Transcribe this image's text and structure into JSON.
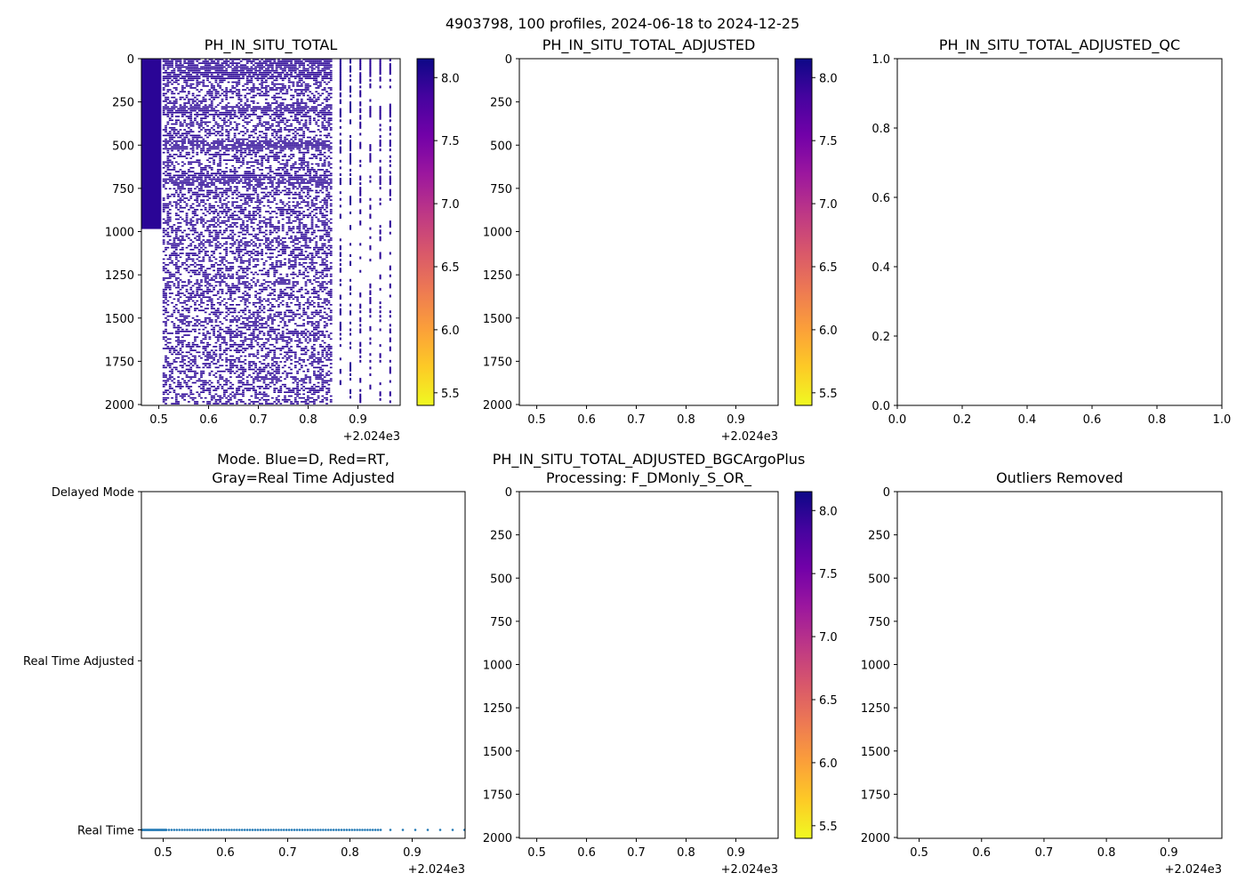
{
  "figure": {
    "suptitle": "4903798, 100 profiles, 2024-06-18 to 2024-12-25"
  },
  "chart_data": [
    {
      "id": "p1",
      "type": "heatmap",
      "title": "PH_IN_SITU_TOTAL",
      "xlim": [
        0.465,
        0.985
      ],
      "ylim": [
        2005,
        0
      ],
      "xticks": [
        0.5,
        0.6,
        0.7,
        0.8,
        0.9
      ],
      "xtick_labels": [
        "0.5",
        "0.6",
        "0.7",
        "0.8",
        "0.9"
      ],
      "x_offset_label": "+2.024e3",
      "yticks": [
        0,
        250,
        500,
        750,
        1000,
        1250,
        1500,
        1750,
        2000
      ],
      "ytick_labels": [
        "0",
        "250",
        "500",
        "750",
        "1000",
        "1250",
        "1500",
        "1750",
        "2000"
      ],
      "colorbar": {
        "cmap": "plasma_r",
        "range": [
          5.4,
          8.15
        ],
        "ticks": [
          5.5,
          6.0,
          6.5,
          7.0,
          7.5,
          8.0
        ],
        "tick_labels": [
          "5.5",
          "6.0",
          "6.5",
          "7.0",
          "7.5",
          "8.0"
        ]
      },
      "data_summary": {
        "value_approx": 8.0,
        "dense_band": {
          "x": [
            0.465,
            0.505
          ],
          "depth": [
            0,
            985
          ]
        },
        "profile_columns": {
          "x_start": 0.51,
          "x_end": 0.85,
          "step": 0.0042,
          "depth": [
            0,
            2000
          ]
        },
        "sparse_profiles_x": [
          0.865,
          0.885,
          0.905,
          0.925,
          0.945,
          0.965
        ],
        "dense_layers_depth": [
          [
            0,
            120
          ],
          [
            265,
            325
          ],
          [
            465,
            525
          ],
          [
            665,
            725
          ]
        ]
      }
    },
    {
      "id": "p2",
      "type": "heatmap",
      "title": "PH_IN_SITU_TOTAL_ADJUSTED",
      "xlim": [
        0.465,
        0.985
      ],
      "ylim": [
        2005,
        0
      ],
      "xticks": [
        0.5,
        0.6,
        0.7,
        0.8,
        0.9
      ],
      "xtick_labels": [
        "0.5",
        "0.6",
        "0.7",
        "0.8",
        "0.9"
      ],
      "x_offset_label": "+2.024e3",
      "yticks": [
        0,
        250,
        500,
        750,
        1000,
        1250,
        1500,
        1750,
        2000
      ],
      "ytick_labels": [
        "0",
        "250",
        "500",
        "750",
        "1000",
        "1250",
        "1500",
        "1750",
        "2000"
      ],
      "colorbar": {
        "cmap": "plasma_r",
        "range": [
          5.4,
          8.15
        ],
        "ticks": [
          5.5,
          6.0,
          6.5,
          7.0,
          7.5,
          8.0
        ],
        "tick_labels": [
          "5.5",
          "6.0",
          "6.5",
          "7.0",
          "7.5",
          "8.0"
        ]
      },
      "values": []
    },
    {
      "id": "p3",
      "type": "scatter",
      "title": "PH_IN_SITU_TOTAL_ADJUSTED_QC",
      "xlim": [
        0,
        1
      ],
      "ylim": [
        0,
        1
      ],
      "xticks": [
        0,
        0.2,
        0.4,
        0.6,
        0.8,
        1.0
      ],
      "xtick_labels": [
        "0.0",
        "0.2",
        "0.4",
        "0.6",
        "0.8",
        "1.0"
      ],
      "yticks": [
        0,
        0.2,
        0.4,
        0.6,
        0.8,
        1.0
      ],
      "ytick_labels": [
        "0.0",
        "0.2",
        "0.4",
        "0.6",
        "0.8",
        "1.0"
      ],
      "values": []
    },
    {
      "id": "p4",
      "type": "scatter",
      "title": "Mode. Blue=D, Red=RT,",
      "title_line2": "Gray=Real Time Adjusted",
      "xlim": [
        0.465,
        0.985
      ],
      "ylim": [
        -0.05,
        2.0
      ],
      "xticks": [
        0.5,
        0.6,
        0.7,
        0.8,
        0.9
      ],
      "xtick_labels": [
        "0.5",
        "0.6",
        "0.7",
        "0.8",
        "0.9"
      ],
      "x_offset_label": "+2.024e3",
      "yticks": [
        2,
        1,
        0
      ],
      "ytick_labels": [
        "Delayed Mode",
        "Real Time Adjusted",
        "Real Time"
      ],
      "series": [
        {
          "name": "Real Time",
          "color": "#1f77b4",
          "x_dense_range": [
            0.465,
            0.505,
            0.0012
          ],
          "x_regular_range": [
            0.505,
            0.85,
            0.0042
          ],
          "x_sparse": [
            0.865,
            0.885,
            0.905,
            0.925,
            0.945,
            0.965,
            0.984
          ],
          "y": 0
        }
      ]
    },
    {
      "id": "p5",
      "type": "heatmap",
      "title": "PH_IN_SITU_TOTAL_ADJUSTED_BGCArgoPlus",
      "title_line2": "Processing: F_DMonly_S_OR_",
      "xlim": [
        0.465,
        0.985
      ],
      "ylim": [
        2005,
        0
      ],
      "xticks": [
        0.5,
        0.6,
        0.7,
        0.8,
        0.9
      ],
      "xtick_labels": [
        "0.5",
        "0.6",
        "0.7",
        "0.8",
        "0.9"
      ],
      "x_offset_label": "+2.024e3",
      "yticks": [
        0,
        250,
        500,
        750,
        1000,
        1250,
        1500,
        1750,
        2000
      ],
      "ytick_labels": [
        "0",
        "250",
        "500",
        "750",
        "1000",
        "1250",
        "1500",
        "1750",
        "2000"
      ],
      "colorbar": {
        "cmap": "plasma_r",
        "range": [
          5.4,
          8.15
        ],
        "ticks": [
          5.5,
          6.0,
          6.5,
          7.0,
          7.5,
          8.0
        ],
        "tick_labels": [
          "5.5",
          "6.0",
          "6.5",
          "7.0",
          "7.5",
          "8.0"
        ]
      },
      "values": []
    },
    {
      "id": "p6",
      "type": "scatter",
      "title": "Outliers Removed",
      "xlim": [
        0.465,
        0.985
      ],
      "ylim": [
        2005,
        0
      ],
      "xticks": [
        0.5,
        0.6,
        0.7,
        0.8,
        0.9
      ],
      "xtick_labels": [
        "0.5",
        "0.6",
        "0.7",
        "0.8",
        "0.9"
      ],
      "x_offset_label": "+2.024e3",
      "yticks": [
        0,
        250,
        500,
        750,
        1000,
        1250,
        1500,
        1750,
        2000
      ],
      "ytick_labels": [
        "0",
        "250",
        "500",
        "750",
        "1000",
        "1250",
        "1500",
        "1750",
        "2000"
      ],
      "values": []
    }
  ]
}
